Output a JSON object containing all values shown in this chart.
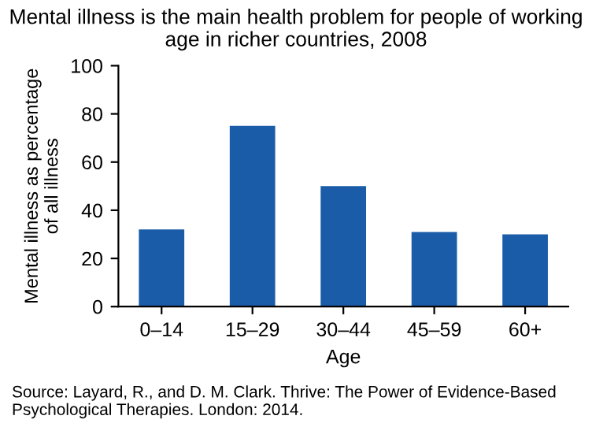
{
  "chart_data": {
    "type": "bar",
    "title": "Mental illness is the main health problem for people of working age in richer countries, 2008",
    "xlabel": "Age",
    "ylabel": "Mental illness as percentage\nof all illness",
    "categories": [
      "0–14",
      "15–29",
      "30–44",
      "45–59",
      "60+"
    ],
    "values": [
      32,
      75,
      50,
      31,
      30
    ],
    "color": "#1a5ca8",
    "ylim": [
      0,
      100
    ],
    "yticks": [
      0,
      20,
      40,
      60,
      80,
      100
    ],
    "grid": false,
    "annotations": [
      "Source: Layard, R., and D. M. Clark. Thrive: The Power of Evidence-Based Psychological Therapies. London: 2014."
    ]
  }
}
